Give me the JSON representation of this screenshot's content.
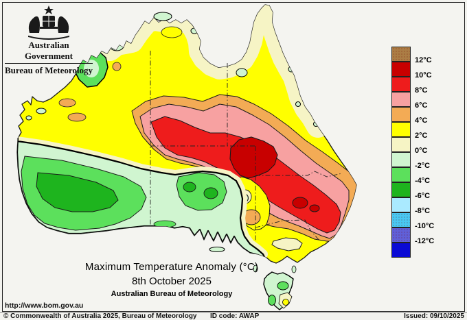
{
  "header": {
    "government": "Australian Government",
    "bureau": "Bureau of Meteorology"
  },
  "titles": {
    "main": "Maximum Temperature Anomaly (°C)",
    "date": "8th October 2025",
    "org": "Australian Bureau of Meteorology"
  },
  "url": "http://www.bom.gov.au",
  "footer": {
    "copyright": "© Commonwealth of Australia 2025, Bureau of Meteorology",
    "id_code": "ID code: AWAP",
    "issued": "Issued: 09/10/2025"
  },
  "palette": {
    "brown": "#ab7d45",
    "dark_red": "#c80000",
    "red": "#ee1c1c",
    "pink": "#f7a1a1",
    "orange": "#f3ab55",
    "yellow": "#ffff00",
    "cream": "#f6f4c5",
    "pale_green": "#d0f5d0",
    "light_green": "#5ce05c",
    "green": "#1eb41e",
    "pale_cyan": "#aaeaff",
    "cyan": "#49c8f2",
    "blue_violet": "#6060d8",
    "blue": "#0a0ad4",
    "land_line": "#1a1a1a"
  },
  "legend": {
    "unit": "°C",
    "rows": [
      {
        "color": "brown",
        "label": "12°C",
        "dots": true
      },
      {
        "color": "dark_red",
        "label": "10°C",
        "dots": false
      },
      {
        "color": "red",
        "label": "8°C",
        "dots": false
      },
      {
        "color": "pink",
        "label": "6°C",
        "dots": false
      },
      {
        "color": "orange",
        "label": "4°C",
        "dots": false
      },
      {
        "color": "yellow",
        "label": "2°C",
        "dots": false
      },
      {
        "color": "cream",
        "label": "0°C",
        "dots": false
      },
      {
        "color": "pale_green",
        "label": "-2°C",
        "dots": false
      },
      {
        "color": "light_green",
        "label": "-4°C",
        "dots": false
      },
      {
        "color": "green",
        "label": "-6°C",
        "dots": false
      },
      {
        "color": "pale_cyan",
        "label": "-8°C",
        "dots": false
      },
      {
        "color": "cyan",
        "label": "-10°C",
        "dots": true
      },
      {
        "color": "blue_violet",
        "label": "-12°C",
        "dots": true
      },
      {
        "color": "blue",
        "label": "",
        "dots": false
      }
    ]
  },
  "map": {
    "type": "contour-choropleth",
    "region": "Australia",
    "anomaly_regions": [
      {
        "area": "central interior near NT/SA/QLD borders",
        "band_degC": "10 to 12"
      },
      {
        "area": "broad central belt from WA border through SA/QLD into NSW",
        "band_degC": "8 to 10"
      },
      {
        "area": "inland NSW spots",
        "band_degC": "10 to 12"
      },
      {
        "area": "southwest WA core",
        "band_degC": "-4 to -6"
      },
      {
        "area": "Eyre Peninsula / SA gulfs",
        "band_degC": "-4 to -6"
      },
      {
        "area": "west Kimberley coast",
        "band_degC": "-2 to -4"
      },
      {
        "area": "northern coasts, Cape York and NE QLD coast",
        "band_degC": "0 to 2"
      },
      {
        "area": "Tasmania",
        "band_degC": "-2 to 0"
      }
    ]
  }
}
